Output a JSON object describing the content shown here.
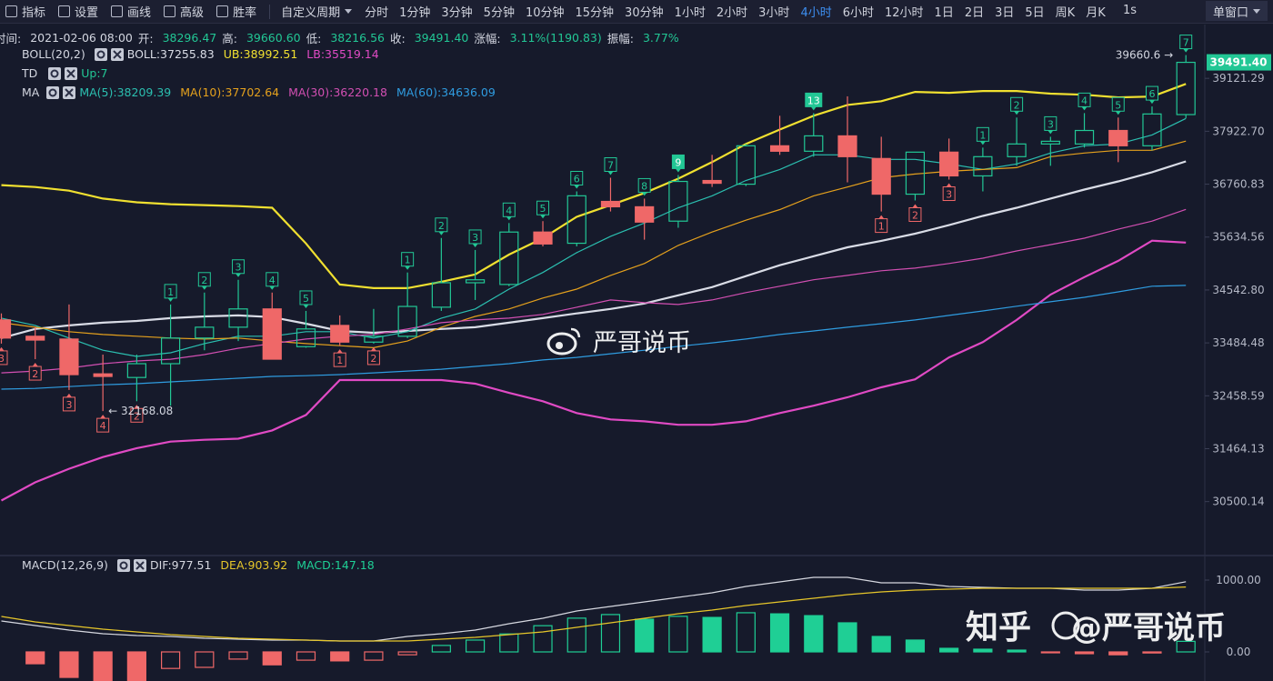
{
  "toolbar": {
    "tools": [
      "指标",
      "设置",
      "画线",
      "高级",
      "胜率"
    ],
    "period_menu": "自定义周期",
    "periods": [
      "分时",
      "1分钟",
      "3分钟",
      "5分钟",
      "10分钟",
      "15分钟",
      "30分钟",
      "1小时",
      "2小时",
      "3小时",
      "4小时",
      "6小时",
      "12小时",
      "1日",
      "2日",
      "3日",
      "5日",
      "周K",
      "月K"
    ],
    "active_period": 10,
    "refresh": "1s",
    "window_menu": "单窗口"
  },
  "info": [
    {
      "label": "时间:",
      "value": "2021-02-06 08:00"
    },
    {
      "label": "开:",
      "value": "38296.47"
    },
    {
      "label": "高:",
      "value": "39660.60"
    },
    {
      "label": "低:",
      "value": "38216.56"
    },
    {
      "label": "收:",
      "value": "39491.40"
    },
    {
      "label": "涨幅:",
      "value": "3.11%(1190.83)"
    },
    {
      "label": "振幅:",
      "value": "3.77%"
    }
  ],
  "indicators": {
    "boll": "BOLL(20,2)",
    "td": "TD",
    "td_status": "Up:7",
    "ma": "MA",
    "macd": "MACD(12,26,9)"
  },
  "watermark": {
    "center": "严哥说币",
    "site": "知乎",
    "handle": "@严哥说币"
  },
  "chart_data": [
    {
      "type": "candlestick",
      "log_scale": true,
      "grid": false,
      "up_color": "#22c795",
      "down_color": "#ef6868",
      "ylim": [
        29548,
        40379
      ],
      "yticks": [
        39121.29,
        {
          "value": 37922.7,
          "label": "37922.70"
        },
        36760.83,
        35634.56,
        {
          "value": 34542.8,
          "label": "34542.80"
        },
        33484.48,
        32458.59,
        31464.13,
        30500.14
      ],
      "open": [
        33940,
        33615,
        33560,
        32880,
        32810,
        33077,
        33580,
        33795,
        34160,
        33410,
        33830,
        33500,
        33615,
        34195,
        34690,
        34655,
        35740,
        35505,
        36390,
        36275,
        35970,
        36840,
        36760,
        37600,
        37480,
        37820,
        37320,
        36545,
        37460,
        36940,
        37360,
        37640,
        37640,
        37940,
        37600,
        38296.47
      ],
      "high": [
        34070,
        33795,
        34250,
        33255,
        33255,
        34250,
        34490,
        34750,
        34490,
        34120,
        34030,
        34160,
        34900,
        35615,
        35365,
        35930,
        35970,
        36605,
        36900,
        36450,
        36960,
        37400,
        37640,
        38270,
        38330,
        38710,
        37800,
        37460,
        37760,
        37560,
        38230,
        37800,
        38330,
        38230,
        38480,
        39660.6
      ],
      "low": [
        33470,
        33165,
        32570,
        32168.08,
        32355,
        32270,
        33340,
        33520,
        33165,
        33390,
        33430,
        33470,
        33580,
        34120,
        34340,
        34620,
        35440,
        35440,
        36175,
        35580,
        35830,
        36700,
        36720,
        37400,
        37360,
        36800,
        36175,
        36410,
        36860,
        36605,
        37160,
        37160,
        37560,
        37240,
        37500,
        38216.56
      ],
      "close": [
        33580,
        33540,
        32865,
        32830,
        33077,
        33580,
        33795,
        34160,
        33165,
        33760,
        33500,
        33615,
        34210,
        34690,
        34750,
        35740,
        35490,
        36510,
        36275,
        35950,
        36820,
        36780,
        37600,
        37480,
        37820,
        37360,
        36545,
        37460,
        36940,
        37360,
        37640,
        37700,
        37940,
        37600,
        38310,
        39491.4
      ],
      "high_label": "39660.6 →",
      "low_label": "← 32168.08",
      "last_price_label": "39491.40",
      "series": [
        {
          "name": "BOLL:37255.83",
          "color": "#d9dce6",
          "line_width": 2.2,
          "values": [
            33580,
            33760,
            33830,
            33885,
            33920,
            33975,
            34010,
            34030,
            33995,
            33865,
            33720,
            33685,
            33720,
            33760,
            33795,
            33885,
            33975,
            34070,
            34160,
            34270,
            34435,
            34600,
            34825,
            35050,
            35235,
            35420,
            35555,
            35705,
            35885,
            36080,
            36255,
            36450,
            36645,
            36820,
            37020,
            37255.83
          ]
        },
        {
          "name": "UB:38992.51",
          "color": "#f0e030",
          "line_width": 2.2,
          "values": [
            36740,
            36700,
            36620,
            36450,
            36370,
            36330,
            36310,
            36290,
            36255,
            35500,
            34655,
            34580,
            34580,
            34710,
            34860,
            35270,
            35610,
            36060,
            36310,
            36570,
            36880,
            37240,
            37640,
            37960,
            38270,
            38515,
            38600,
            38810,
            38790,
            38830,
            38830,
            38770,
            38745,
            38685,
            38705,
            38992.51
          ]
        },
        {
          "name": "LB:35519.14",
          "color": "#e04ac4",
          "line_width": 2.2,
          "values": [
            30520,
            30848,
            31095,
            31310,
            31475,
            31595,
            31630,
            31650,
            31805,
            32095,
            32760,
            32760,
            32760,
            32760,
            32690,
            32515,
            32355,
            32130,
            32010,
            31975,
            31910,
            31910,
            31975,
            32130,
            32270,
            32430,
            32620,
            32775,
            33200,
            33500,
            33940,
            34450,
            34805,
            35140,
            35560,
            35519.14
          ]
        },
        {
          "name": "MA(5):38209.39",
          "color": "#2bbfb0",
          "line_width": 1.2,
          "values": [
            33975,
            33830,
            33580,
            33340,
            33220,
            33290,
            33470,
            33615,
            33615,
            33705,
            33705,
            33580,
            33705,
            33975,
            34160,
            34560,
            34900,
            35310,
            35650,
            35930,
            36255,
            36510,
            36840,
            37080,
            37400,
            37400,
            37300,
            37300,
            37200,
            37080,
            37200,
            37440,
            37600,
            37640,
            37840,
            38209.39
          ]
        },
        {
          "name": "MA(10):37702.64",
          "color": "#e5a11d",
          "line_width": 1.2,
          "values": [
            33885,
            33795,
            33705,
            33650,
            33615,
            33580,
            33560,
            33580,
            33520,
            33470,
            33430,
            33390,
            33520,
            33795,
            34010,
            34160,
            34380,
            34560,
            34840,
            35085,
            35460,
            35740,
            35990,
            36215,
            36510,
            36700,
            36900,
            36980,
            37040,
            37080,
            37120,
            37360,
            37440,
            37500,
            37500,
            37702.64
          ]
        },
        {
          "name": "MA(30):36220.18",
          "color": "#d24fb2",
          "line_width": 1.2,
          "values": [
            32900,
            32935,
            32990,
            33077,
            33130,
            33165,
            33255,
            33380,
            33470,
            33560,
            33615,
            33650,
            33760,
            33885,
            33940,
            33975,
            34050,
            34195,
            34340,
            34285,
            34250,
            34340,
            34490,
            34620,
            34750,
            34840,
            34935,
            34990,
            35085,
            35195,
            35345,
            35475,
            35610,
            35800,
            35970,
            36220.18
          ]
        },
        {
          "name": "MA(60):34636.09",
          "color": "#2f9ce0",
          "line_width": 1.2,
          "values": [
            32585,
            32600,
            32635,
            32670,
            32690,
            32725,
            32760,
            32795,
            32830,
            32845,
            32865,
            32900,
            32935,
            32970,
            33025,
            33077,
            33150,
            33200,
            33270,
            33340,
            33415,
            33484,
            33560,
            33650,
            33720,
            33795,
            33865,
            33940,
            34030,
            34120,
            34215,
            34305,
            34395,
            34505,
            34620,
            34636.09
          ]
        }
      ],
      "td": [
        {
          "candle": 0,
          "text": "3",
          "side": "below"
        },
        {
          "candle": 1,
          "text": "2",
          "side": "below"
        },
        {
          "candle": 2,
          "text": "3",
          "side": "below"
        },
        {
          "candle": 3,
          "text": "4",
          "side": "below"
        },
        {
          "candle": 4,
          "text": "2",
          "side": "below"
        },
        {
          "candle": 5,
          "text": "1",
          "side": "above"
        },
        {
          "candle": 6,
          "text": "2",
          "side": "above"
        },
        {
          "candle": 7,
          "text": "3",
          "side": "above"
        },
        {
          "candle": 8,
          "text": "4",
          "side": "above"
        },
        {
          "candle": 9,
          "text": "5",
          "side": "above"
        },
        {
          "candle": 10,
          "text": "1",
          "side": "below"
        },
        {
          "candle": 11,
          "text": "2",
          "side": "below"
        },
        {
          "candle": 12,
          "text": "1",
          "side": "above"
        },
        {
          "candle": 13,
          "text": "2",
          "side": "above"
        },
        {
          "candle": 14,
          "text": "3",
          "side": "above"
        },
        {
          "candle": 15,
          "text": "4",
          "side": "above"
        },
        {
          "candle": 16,
          "text": "5",
          "side": "above"
        },
        {
          "candle": 17,
          "text": "6",
          "side": "above"
        },
        {
          "candle": 18,
          "text": "7",
          "side": "above"
        },
        {
          "candle": 19,
          "text": "8",
          "side": "above"
        },
        {
          "candle": 20,
          "text": "9",
          "side": "above",
          "filled": true
        },
        {
          "candle": 24,
          "text": "13",
          "side": "above",
          "filled": true
        },
        {
          "candle": 26,
          "text": "1",
          "side": "below"
        },
        {
          "candle": 27,
          "text": "2",
          "side": "below"
        },
        {
          "candle": 28,
          "text": "3",
          "side": "below"
        },
        {
          "candle": 29,
          "text": "1",
          "side": "above"
        },
        {
          "candle": 30,
          "text": "2",
          "side": "above"
        },
        {
          "candle": 31,
          "text": "3",
          "side": "above"
        },
        {
          "candle": 32,
          "text": "4",
          "side": "above"
        },
        {
          "candle": 33,
          "text": "5",
          "side": "above"
        },
        {
          "candle": 34,
          "text": "6",
          "side": "above"
        },
        {
          "candle": 35,
          "text": "7",
          "side": "above"
        }
      ]
    },
    {
      "type": "bar",
      "title": "MACD(12,26,9)",
      "value_label": "MACD:147.18",
      "up_color": "#1fcf95",
      "down_color": "#ef6868",
      "ylim": [
        -405,
        1329
      ],
      "yticks": [
        {
          "value": 1000,
          "label": "1000.00"
        },
        {
          "value": 0,
          "label": "0.00"
        }
      ],
      "values": [
        null,
        -165,
        -355,
        -400,
        -420,
        -230,
        -215,
        -100,
        -180,
        -115,
        -125,
        -115,
        -40,
        90,
        165,
        250,
        365,
        470,
        520,
        455,
        495,
        480,
        545,
        530,
        505,
        405,
        215,
        165,
        50,
        38,
        25,
        -12,
        -25,
        -40,
        -15,
        147.18
      ],
      "series": [
        {
          "name": "DIF:977.51",
          "color": "#d6d8e0",
          "values": [
            430,
            367,
            304,
            253,
            228,
            215,
            190,
            177,
            165,
            165,
            152,
            152,
            215,
            253,
            304,
            392,
            468,
            570,
            633,
            696,
            760,
            823,
            911,
            975,
            1038,
            1038,
            962,
            962,
            911,
            899,
            886,
            886,
            861,
            861,
            886,
            977.51
          ]
        },
        {
          "name": "DEA:903.92",
          "color": "#e6c62a",
          "values": [
            494,
            418,
            367,
            317,
            279,
            241,
            215,
            190,
            177,
            165,
            152,
            152,
            152,
            177,
            203,
            241,
            279,
            342,
            405,
            468,
            532,
            582,
            646,
            696,
            747,
            798,
            835,
            861,
            873,
            886,
            886,
            886,
            886,
            886,
            886,
            903.92
          ]
        }
      ]
    }
  ]
}
